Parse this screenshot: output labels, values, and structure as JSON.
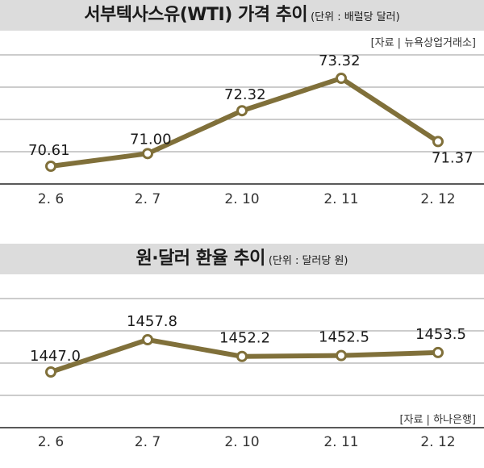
{
  "chart_data": [
    {
      "type": "line",
      "title": "서부텍사스유(WTI) 가격 추이",
      "unit": "(단위 : 배럴당 달러)",
      "source": "[자료 | 뉴욕상업거래소]",
      "categories": [
        "2. 6",
        "2. 7",
        "2. 10",
        "2. 11",
        "2. 12"
      ],
      "values": [
        70.61,
        71.0,
        72.32,
        73.32,
        71.37
      ],
      "value_labels": [
        "70.61",
        "71.00",
        "72.32",
        "73.32",
        "71.37"
      ],
      "grid": true,
      "line_color": "#80703a"
    },
    {
      "type": "line",
      "title": "원·달러 환율 추이",
      "unit": "(단위 : 달러당 원)",
      "source": "[자료 | 하나은행]",
      "categories": [
        "2. 6",
        "2. 7",
        "2. 10",
        "2. 11",
        "2. 12"
      ],
      "values": [
        1447.0,
        1457.8,
        1452.2,
        1452.5,
        1453.5
      ],
      "value_labels": [
        "1447.0",
        "1457.8",
        "1452.2",
        "1452.5",
        "1453.5"
      ],
      "grid": true,
      "line_color": "#80703a"
    }
  ]
}
